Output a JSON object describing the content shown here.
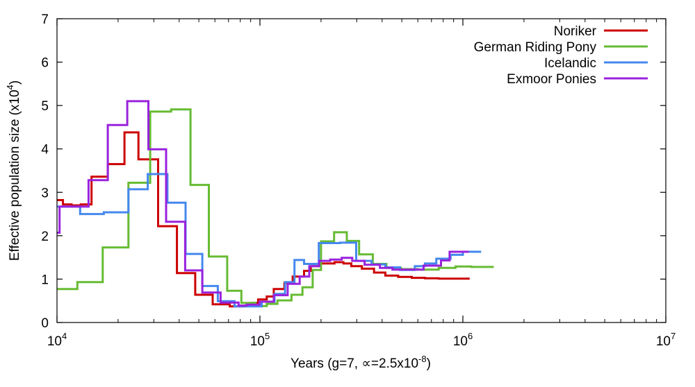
{
  "chart_data": {
    "type": "line",
    "step": true,
    "xscale": "log",
    "xlabel": {
      "text": "Years (g=7, ∝=2.5x10",
      "sup": "-8",
      "tail": ")"
    },
    "ylabel": {
      "text": "Effective population size (x10",
      "sup": "4",
      "tail": ")"
    },
    "xlim": [
      10000,
      10000000
    ],
    "ylim": [
      0,
      7
    ],
    "xticks": [
      {
        "value": 10000,
        "base": "10",
        "exp": "4"
      },
      {
        "value": 100000,
        "base": "10",
        "exp": "5"
      },
      {
        "value": 1000000,
        "base": "10",
        "exp": "6"
      },
      {
        "value": 10000000,
        "base": "10",
        "exp": "7"
      }
    ],
    "yticks": [
      {
        "value": 0,
        "label": "0"
      },
      {
        "value": 1,
        "label": "1"
      },
      {
        "value": 2,
        "label": "2"
      },
      {
        "value": 3,
        "label": "3"
      },
      {
        "value": 4,
        "label": "4"
      },
      {
        "value": 5,
        "label": "5"
      },
      {
        "value": 6,
        "label": "6"
      },
      {
        "value": 7,
        "label": "7"
      }
    ],
    "legend_position": "top-right",
    "series": [
      {
        "name": "Noriker",
        "color": "#cc0000",
        "x": [
          10000,
          10700,
          11800,
          13100,
          14800,
          17800,
          21500,
          25200,
          31500,
          39000,
          48000,
          58500,
          71000,
          83500,
          91000,
          98000,
          108000,
          117000,
          132000,
          145000,
          165000,
          178000,
          195000,
          212000,
          233000,
          258000,
          282000,
          318000,
          365000,
          415000,
          480000,
          560000,
          650000,
          760000,
          880000,
          1080000
        ],
        "y": [
          2.82,
          2.72,
          2.7,
          2.72,
          3.36,
          3.65,
          4.38,
          3.76,
          2.22,
          1.14,
          0.64,
          0.42,
          0.37,
          0.39,
          0.45,
          0.53,
          0.6,
          0.77,
          0.91,
          1.06,
          1.19,
          1.3,
          1.36,
          1.36,
          1.39,
          1.36,
          1.3,
          1.24,
          1.15,
          1.08,
          1.05,
          1.03,
          1.02,
          1.01,
          1.01,
          1.01
        ]
      },
      {
        "name": "German Riding Pony",
        "color": "#66bb33",
        "x": [
          10000,
          12600,
          16800,
          22500,
          28800,
          36500,
          45500,
          56000,
          69000,
          81000,
          95000,
          108000,
          122000,
          143000,
          162000,
          182000,
          200000,
          232000,
          268000,
          308000,
          360000,
          420000,
          495000,
          600000,
          760000,
          920000,
          1100000,
          1420000
        ],
        "y": [
          0.77,
          0.93,
          1.73,
          3.22,
          4.86,
          4.91,
          3.17,
          1.52,
          0.73,
          0.45,
          0.38,
          0.43,
          0.51,
          0.64,
          0.81,
          1.21,
          1.87,
          2.08,
          1.88,
          1.57,
          1.35,
          1.26,
          1.23,
          1.22,
          1.26,
          1.29,
          1.28,
          1.28
        ]
      },
      {
        "name": "Icelandic",
        "color": "#4488ee",
        "x": [
          10000,
          13000,
          17000,
          22500,
          28000,
          35000,
          43000,
          52000,
          62000,
          75000,
          89000,
          102000,
          118000,
          133000,
          148000,
          165000,
          195000,
          248000,
          298000,
          355000,
          415000,
          490000,
          580000,
          650000,
          740000,
          870000,
          1000000,
          1230000
        ],
        "y": [
          2.67,
          2.5,
          2.54,
          3.07,
          3.42,
          2.76,
          1.58,
          0.84,
          0.49,
          0.37,
          0.37,
          0.48,
          0.66,
          0.93,
          1.44,
          1.35,
          1.83,
          1.84,
          1.42,
          1.34,
          1.27,
          1.21,
          1.3,
          1.36,
          1.47,
          1.56,
          1.63,
          1.63
        ]
      },
      {
        "name": "Exmoor Ponies",
        "color": "#9922dd",
        "x": [
          10000,
          10300,
          14300,
          17800,
          22200,
          28200,
          34500,
          42800,
          52000,
          64000,
          78500,
          86000,
          99500,
          117000,
          137000,
          157000,
          175000,
          196000,
          222000,
          253000,
          285000,
          328000,
          390000,
          450000,
          540000,
          640000,
          780000,
          860000,
          1070000
        ],
        "y": [
          2.07,
          2.67,
          3.28,
          4.55,
          5.1,
          3.99,
          2.32,
          1.2,
          0.69,
          0.46,
          0.39,
          0.41,
          0.48,
          0.63,
          0.89,
          1.06,
          1.3,
          1.42,
          1.45,
          1.49,
          1.42,
          1.33,
          1.26,
          1.22,
          1.22,
          1.31,
          1.43,
          1.63,
          1.63
        ]
      }
    ]
  }
}
